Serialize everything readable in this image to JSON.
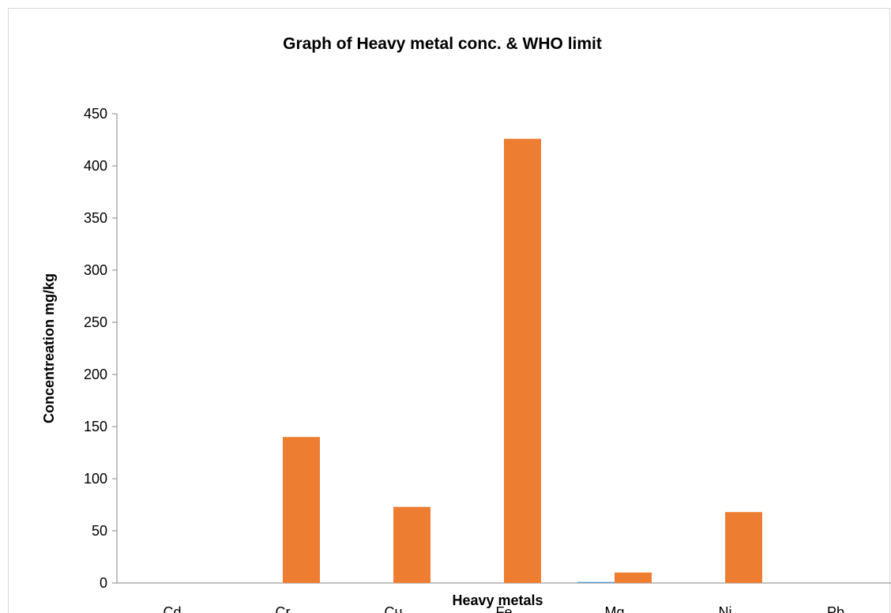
{
  "chart_data": {
    "type": "bar",
    "title": "Graph of  Heavy metal conc. & WHO limit",
    "xlabel": "Heavy metals",
    "ylabel": "Concentreation mg/kg",
    "categories": [
      "Cd",
      "Cr",
      "Cu",
      "Fe",
      "Mg",
      "Ni",
      "Pb"
    ],
    "ylim": [
      0,
      450
    ],
    "yticks": [
      0,
      50,
      100,
      150,
      200,
      250,
      300,
      350,
      400,
      450
    ],
    "grid": false,
    "legend": "none",
    "series": [
      {
        "values": [
          0,
          0,
          0,
          0,
          1,
          0,
          0
        ],
        "color": "#5b9bd5"
      },
      {
        "values": [
          0,
          140,
          73,
          426,
          10,
          68,
          0
        ],
        "color": "#ed7d31"
      }
    ]
  }
}
